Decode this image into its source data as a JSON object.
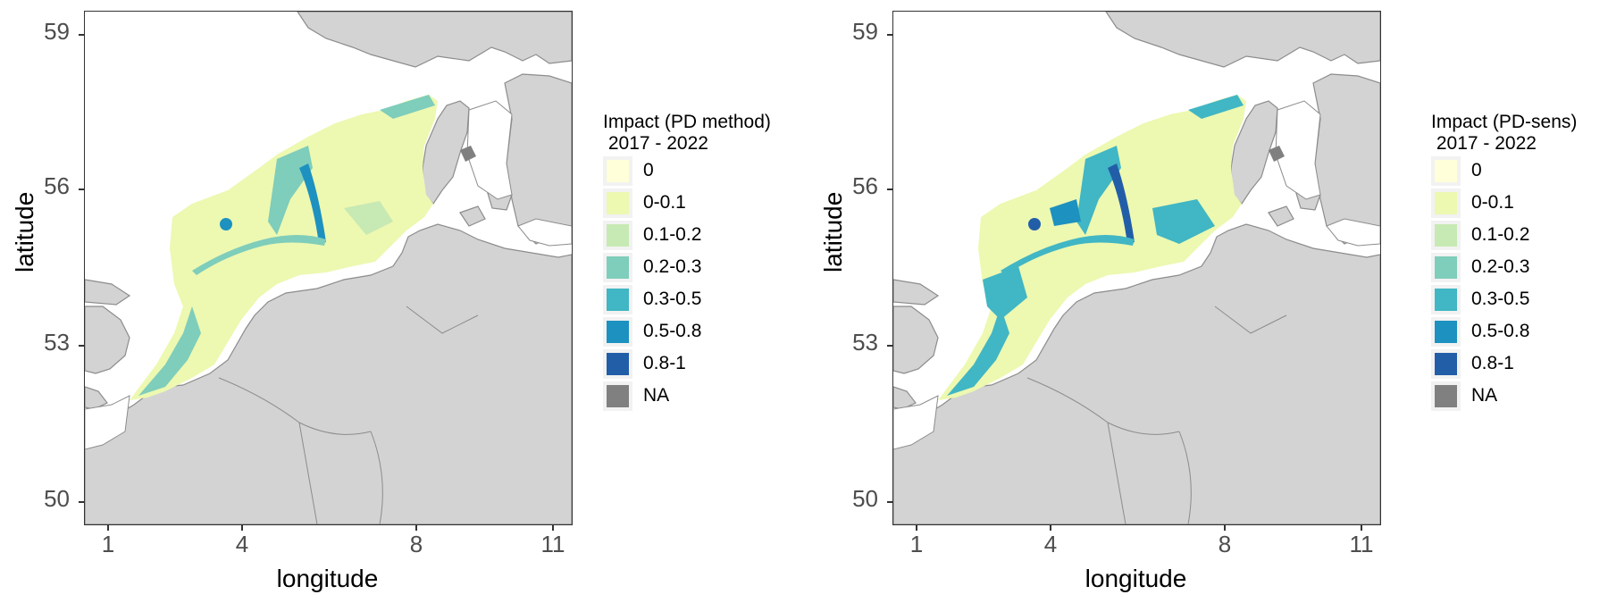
{
  "maps": [
    {
      "id": "left",
      "legend_title": "Impact (PD method)\n 2017 - 2022",
      "xlabel": "longitude",
      "ylabel": "latitude",
      "x_ticks": [
        "1",
        "4",
        "8",
        "11"
      ],
      "y_ticks": [
        "59",
        "56",
        "53",
        "50"
      ],
      "xlim": [
        0.5,
        11.5
      ],
      "ylim": [
        49.5,
        59.5
      ],
      "intensity": "low"
    },
    {
      "id": "right",
      "legend_title": "Impact (PD-sens)\n 2017 - 2022",
      "xlabel": "longitude",
      "ylabel": "latitude",
      "x_ticks": [
        "1",
        "4",
        "8",
        "11"
      ],
      "y_ticks": [
        "59",
        "56",
        "53",
        "50"
      ],
      "xlim": [
        0.5,
        11.5
      ],
      "ylim": [
        49.5,
        59.5
      ],
      "intensity": "high"
    }
  ],
  "legend_items": [
    {
      "label": "0",
      "color": "#ffffd9"
    },
    {
      "label": "0-0.1",
      "color": "#edf8b1"
    },
    {
      "label": "0.1-0.2",
      "color": "#c7e9b4"
    },
    {
      "label": "0.2-0.3",
      "color": "#7fcdbb"
    },
    {
      "label": "0.3-0.5",
      "color": "#41b6c4"
    },
    {
      "label": "0.5-0.8",
      "color": "#1d91c0"
    },
    {
      "label": "0.8-1",
      "color": "#225ea8"
    },
    {
      "label": "NA",
      "color": "#808080"
    }
  ],
  "colors": {
    "land": "#d3d3d3",
    "coast": "#8c8c8c",
    "sea": "#ffffff"
  }
}
